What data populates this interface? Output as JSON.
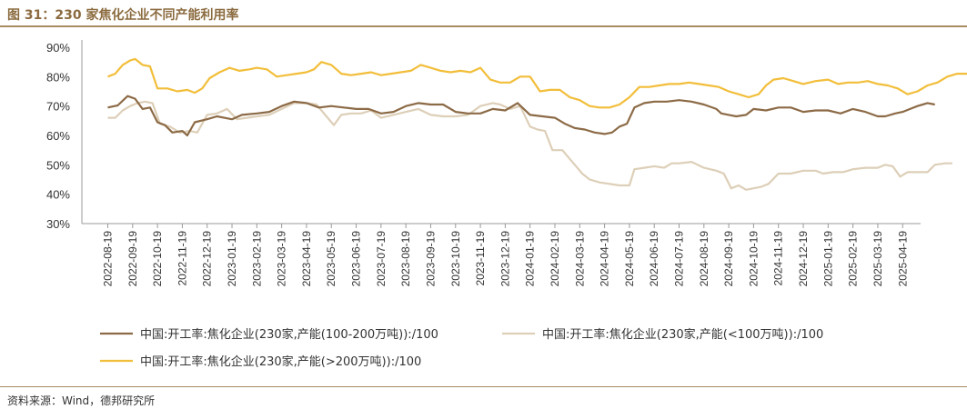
{
  "header": {
    "title": "图 31：230 家焦化企业不同产能利用率"
  },
  "footer": {
    "source": "资料来源：Wind，德邦研究所"
  },
  "colors": {
    "large": "#F2BE3A",
    "medium": "#8C6A46",
    "small": "#DDCFB8",
    "axis": "#999999"
  },
  "chart_data": {
    "type": "line",
    "title": "230 家焦化企业不同产能利用率",
    "ylabel": "",
    "xlabel": "",
    "ylim": [
      30,
      90
    ],
    "yticks": [
      "30%",
      "40%",
      "50%",
      "60%",
      "70%",
      "80%",
      "90%"
    ],
    "categories": [
      "2022-08-19",
      "2022-09-19",
      "2022-10-19",
      "2022-11-19",
      "2022-12-19",
      "2023-01-19",
      "2023-02-19",
      "2023-03-19",
      "2023-04-19",
      "2023-05-19",
      "2023-06-19",
      "2023-07-19",
      "2023-08-19",
      "2023-09-19",
      "2023-10-19",
      "2023-11-19",
      "2023-12-19",
      "2024-01-19",
      "2024-02-19",
      "2024-03-19",
      "2024-04-19",
      "2024-05-19",
      "2024-06-19",
      "2024-07-19",
      "2024-08-19",
      "2024-09-19",
      "2024-10-19",
      "2024-11-19",
      "2024-12-19",
      "2025-01-19",
      "2025-02-19",
      "2025-03-19",
      "2025-04-19"
    ],
    "series": [
      {
        "name": "中国:开工率:焦化企业(230家,产能(100-200万吨)):/100",
        "key": "medium",
        "points": [
          [
            0,
            69.5
          ],
          [
            0.4,
            70.2
          ],
          [
            0.8,
            73.4
          ],
          [
            1.1,
            72.5
          ],
          [
            1.4,
            69
          ],
          [
            1.7,
            69.5
          ],
          [
            2.0,
            64.5
          ],
          [
            2.3,
            63.5
          ],
          [
            2.6,
            61
          ],
          [
            3.0,
            61.5
          ],
          [
            3.2,
            60
          ],
          [
            3.5,
            64.5
          ],
          [
            4.0,
            65.5
          ],
          [
            4.4,
            66.5
          ],
          [
            5.0,
            65.5
          ],
          [
            5.4,
            67
          ],
          [
            6.0,
            67.5
          ],
          [
            6.5,
            68
          ],
          [
            7.0,
            70
          ],
          [
            7.5,
            71.5
          ],
          [
            8.0,
            71
          ],
          [
            8.5,
            69.5
          ],
          [
            9.0,
            70
          ],
          [
            9.5,
            69.5
          ],
          [
            10.0,
            69
          ],
          [
            10.5,
            69
          ],
          [
            11.0,
            67.5
          ],
          [
            11.5,
            68
          ],
          [
            12.0,
            70
          ],
          [
            12.5,
            71
          ],
          [
            13.0,
            70.5
          ],
          [
            13.5,
            70.5
          ],
          [
            14.0,
            68
          ],
          [
            14.5,
            67.5
          ],
          [
            15.0,
            67.5
          ],
          [
            15.5,
            69
          ],
          [
            16.0,
            68.5
          ],
          [
            16.5,
            71
          ],
          [
            17.0,
            67
          ],
          [
            17.5,
            66.5
          ],
          [
            18.0,
            66
          ],
          [
            18.4,
            64
          ],
          [
            18.8,
            62.5
          ],
          [
            19.2,
            62
          ],
          [
            19.6,
            61
          ],
          [
            20.0,
            60.5
          ],
          [
            20.3,
            61
          ],
          [
            20.6,
            63
          ],
          [
            20.9,
            64
          ],
          [
            21.2,
            69.5
          ],
          [
            21.6,
            71
          ],
          [
            22.0,
            71.5
          ],
          [
            22.5,
            71.5
          ],
          [
            23.0,
            72
          ],
          [
            23.5,
            71.5
          ],
          [
            24.0,
            70.5
          ],
          [
            24.5,
            69
          ],
          [
            24.7,
            67.5
          ],
          [
            25.0,
            67
          ],
          [
            25.3,
            66.5
          ],
          [
            25.7,
            67
          ],
          [
            26.0,
            69
          ],
          [
            26.5,
            68.5
          ],
          [
            27.0,
            69.5
          ],
          [
            27.5,
            69.5
          ],
          [
            28.0,
            68
          ],
          [
            28.5,
            68.5
          ],
          [
            29.0,
            68.5
          ],
          [
            29.5,
            67.5
          ],
          [
            30.0,
            69
          ],
          [
            30.5,
            68
          ],
          [
            31.0,
            66.5
          ],
          [
            31.3,
            66.5
          ],
          [
            31.7,
            67.5
          ],
          [
            32.0,
            68
          ],
          [
            32.3,
            69
          ],
          [
            32.6,
            70
          ],
          [
            33.0,
            71
          ],
          [
            33.3,
            70.5
          ]
        ]
      },
      {
        "name": "中国:开工率:焦化企业(230家,产能(<100万吨)):/100",
        "key": "small",
        "points": [
          [
            0,
            66
          ],
          [
            0.3,
            66
          ],
          [
            0.6,
            68.5
          ],
          [
            0.9,
            70
          ],
          [
            1.2,
            71
          ],
          [
            1.5,
            71.5
          ],
          [
            1.8,
            71
          ],
          [
            2.1,
            64
          ],
          [
            2.5,
            63
          ],
          [
            2.9,
            61
          ],
          [
            3.3,
            61.5
          ],
          [
            3.6,
            61
          ],
          [
            4.0,
            67
          ],
          [
            4.4,
            67.5
          ],
          [
            4.8,
            69
          ],
          [
            5.2,
            65.5
          ],
          [
            5.6,
            66
          ],
          [
            6.0,
            66.5
          ],
          [
            6.5,
            67
          ],
          [
            7.0,
            69
          ],
          [
            7.5,
            71
          ],
          [
            8.0,
            71
          ],
          [
            8.4,
            70.5
          ],
          [
            8.8,
            66.5
          ],
          [
            9.1,
            63.5
          ],
          [
            9.4,
            67
          ],
          [
            9.8,
            67.5
          ],
          [
            10.2,
            67.5
          ],
          [
            10.6,
            68.5
          ],
          [
            11.0,
            66
          ],
          [
            11.5,
            67
          ],
          [
            12.0,
            68
          ],
          [
            12.5,
            69
          ],
          [
            13.0,
            67
          ],
          [
            13.5,
            66.5
          ],
          [
            14.0,
            66.5
          ],
          [
            14.5,
            67
          ],
          [
            15.0,
            70
          ],
          [
            15.5,
            71
          ],
          [
            15.8,
            70.5
          ],
          [
            16.2,
            69
          ],
          [
            16.6,
            70
          ],
          [
            17.0,
            63
          ],
          [
            17.3,
            62
          ],
          [
            17.6,
            61.5
          ],
          [
            17.9,
            55
          ],
          [
            18.3,
            55
          ],
          [
            18.6,
            52
          ],
          [
            18.9,
            49
          ],
          [
            19.1,
            47
          ],
          [
            19.4,
            45
          ],
          [
            19.8,
            44
          ],
          [
            20.2,
            43.5
          ],
          [
            20.6,
            43
          ],
          [
            21.0,
            43
          ],
          [
            21.2,
            48.5
          ],
          [
            21.6,
            49
          ],
          [
            22.0,
            49.5
          ],
          [
            22.4,
            49
          ],
          [
            22.7,
            50.5
          ],
          [
            23.0,
            50.5
          ],
          [
            23.5,
            51
          ],
          [
            24.0,
            49
          ],
          [
            24.5,
            48
          ],
          [
            24.8,
            47
          ],
          [
            25.1,
            42
          ],
          [
            25.4,
            43
          ],
          [
            25.7,
            41.5
          ],
          [
            26.0,
            42
          ],
          [
            26.3,
            42.5
          ],
          [
            26.6,
            43.5
          ],
          [
            27.0,
            47
          ],
          [
            27.5,
            47
          ],
          [
            28.0,
            48
          ],
          [
            28.5,
            48
          ],
          [
            28.8,
            47
          ],
          [
            29.2,
            47.5
          ],
          [
            29.6,
            47.5
          ],
          [
            30.0,
            48.5
          ],
          [
            30.5,
            49
          ],
          [
            31.0,
            49
          ],
          [
            31.3,
            50
          ],
          [
            31.6,
            49.5
          ],
          [
            31.9,
            46
          ],
          [
            32.2,
            47.5
          ],
          [
            32.6,
            47.5
          ],
          [
            33.0,
            47.5
          ],
          [
            33.3,
            50
          ],
          [
            33.7,
            50.5
          ],
          [
            34.0,
            50.5
          ]
        ]
      },
      {
        "name": "中国:开工率:焦化企业(230家,产能(>200万吨)):/100",
        "key": "large",
        "points": [
          [
            0,
            80
          ],
          [
            0.3,
            81
          ],
          [
            0.6,
            84
          ],
          [
            0.9,
            85.5
          ],
          [
            1.1,
            86
          ],
          [
            1.4,
            84
          ],
          [
            1.7,
            83.5
          ],
          [
            2.0,
            76
          ],
          [
            2.4,
            76
          ],
          [
            2.8,
            75
          ],
          [
            3.2,
            75.5
          ],
          [
            3.5,
            74.5
          ],
          [
            3.8,
            76
          ],
          [
            4.1,
            79.5
          ],
          [
            4.5,
            81.5
          ],
          [
            4.9,
            83
          ],
          [
            5.3,
            82
          ],
          [
            5.7,
            82.5
          ],
          [
            6.0,
            83
          ],
          [
            6.4,
            82.5
          ],
          [
            6.8,
            80
          ],
          [
            7.2,
            80.5
          ],
          [
            7.6,
            81
          ],
          [
            8.0,
            81.5
          ],
          [
            8.3,
            82.5
          ],
          [
            8.6,
            85
          ],
          [
            9.0,
            84
          ],
          [
            9.4,
            81
          ],
          [
            9.8,
            80.5
          ],
          [
            10.2,
            81
          ],
          [
            10.6,
            81.5
          ],
          [
            11.0,
            80.5
          ],
          [
            11.4,
            81
          ],
          [
            11.8,
            81.5
          ],
          [
            12.2,
            82
          ],
          [
            12.6,
            84
          ],
          [
            13.0,
            83
          ],
          [
            13.4,
            82
          ],
          [
            13.8,
            81.5
          ],
          [
            14.2,
            82
          ],
          [
            14.6,
            81.5
          ],
          [
            15.0,
            83
          ],
          [
            15.4,
            79
          ],
          [
            15.8,
            78
          ],
          [
            16.2,
            78
          ],
          [
            16.6,
            80
          ],
          [
            17.0,
            80
          ],
          [
            17.4,
            75
          ],
          [
            17.8,
            75.5
          ],
          [
            18.2,
            75.5
          ],
          [
            18.6,
            73
          ],
          [
            19.0,
            72
          ],
          [
            19.4,
            70
          ],
          [
            19.8,
            69.5
          ],
          [
            20.2,
            69.5
          ],
          [
            20.6,
            70.5
          ],
          [
            21.0,
            73
          ],
          [
            21.4,
            76.5
          ],
          [
            21.8,
            76.5
          ],
          [
            22.2,
            77
          ],
          [
            22.6,
            77.5
          ],
          [
            23.0,
            77.5
          ],
          [
            23.4,
            78
          ],
          [
            23.8,
            77.5
          ],
          [
            24.2,
            77
          ],
          [
            24.6,
            76.5
          ],
          [
            25.0,
            75
          ],
          [
            25.4,
            74
          ],
          [
            25.8,
            73
          ],
          [
            26.2,
            74
          ],
          [
            26.5,
            77
          ],
          [
            26.8,
            79
          ],
          [
            27.2,
            79.5
          ],
          [
            27.6,
            78.5
          ],
          [
            28.0,
            77.5
          ],
          [
            28.5,
            78.5
          ],
          [
            29.0,
            79
          ],
          [
            29.4,
            77.5
          ],
          [
            29.8,
            78
          ],
          [
            30.2,
            78
          ],
          [
            30.6,
            78.5
          ],
          [
            31.0,
            77.5
          ],
          [
            31.4,
            77
          ],
          [
            31.8,
            76
          ],
          [
            32.2,
            74
          ],
          [
            32.6,
            75
          ],
          [
            33.0,
            77
          ],
          [
            33.4,
            78
          ],
          [
            33.8,
            80
          ],
          [
            34.2,
            81
          ],
          [
            34.6,
            81
          ]
        ]
      }
    ]
  }
}
